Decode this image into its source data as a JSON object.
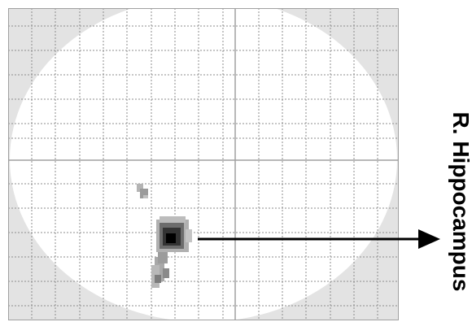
{
  "annotation": {
    "label": "R. Hippocampus"
  },
  "colors": {
    "background": "#ffffff",
    "outside_brain": "#e3e3e3",
    "brain_mask": "#ffffff",
    "grid": "#8c8c8c",
    "crosshair": "#a0a0a0",
    "frame": "#a0a0a0",
    "blob_light": "#b4b4b4",
    "blob_mid": "#8a8a8a",
    "blob_dark": "#3a3a3a",
    "blob_peak": "#000000",
    "arrow": "#000000",
    "label": "#000000"
  },
  "icons": {
    "arrow": "arrow-right-icon"
  }
}
